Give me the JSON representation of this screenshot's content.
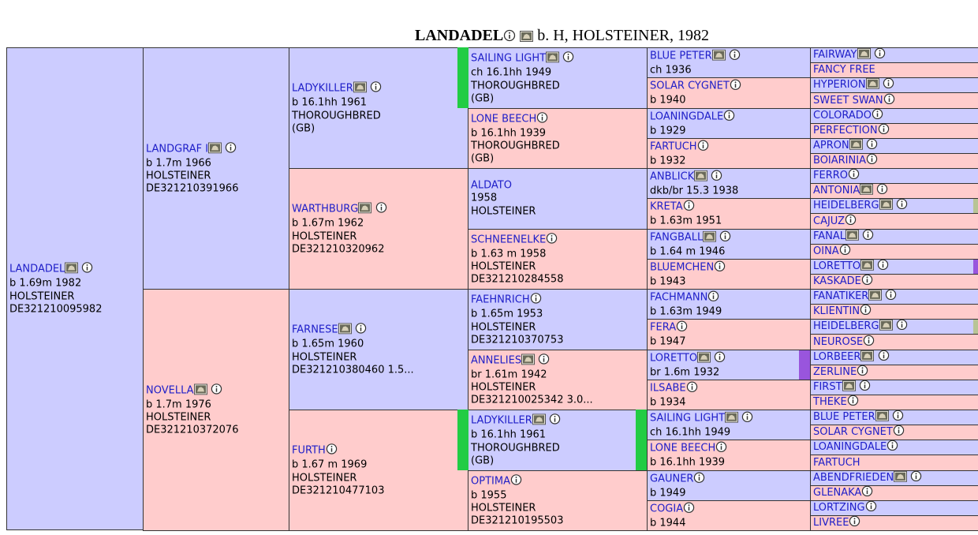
{
  "header": {
    "name": "LANDADEL",
    "details": "b. H, HOLSTEINER, 1982"
  },
  "colors": {
    "male": "#ccccff",
    "female": "#ffcccc",
    "link": "#1e1ec8",
    "green_marker": "#22cc44",
    "purple_marker": "#9955dd",
    "olive_marker": "#b8c496"
  },
  "icons": [
    "photo-icon",
    "info-icon"
  ],
  "subject": {
    "name": "LANDADEL",
    "lines": [
      "b 1.69m 1982",
      "HOLSTEINER",
      "DE321210095982"
    ],
    "photo": true
  },
  "gen1": [
    {
      "name": "LANDGRAF I",
      "lines": [
        "b 1.7m 1966",
        "HOLSTEINER",
        "DE321210391966"
      ],
      "photo": true,
      "sex": "m"
    },
    {
      "name": "NOVELLA",
      "lines": [
        "b 1.7m 1976",
        "HOLSTEINER",
        "DE321210372076"
      ],
      "photo": true,
      "sex": "f"
    }
  ],
  "gen2": [
    {
      "name": "LADYKILLER",
      "lines": [
        "b 16.1hh 1961",
        "THOROUGHBRED",
        "(GB)"
      ],
      "photo": true,
      "sex": "m"
    },
    {
      "name": "WARTHBURG",
      "lines": [
        "b 1.67m 1962",
        "HOLSTEINER",
        "DE321210320962"
      ],
      "photo": true,
      "sex": "f"
    },
    {
      "name": "FARNESE",
      "lines": [
        "b 1.65m 1960",
        "HOLSTEINER",
        "DE321210380460 1.5..."
      ],
      "photo": true,
      "sex": "m"
    },
    {
      "name": "FURTH",
      "lines": [
        "b 1.67 m 1969",
        "HOLSTEINER",
        "DE321210477103"
      ],
      "photo": false,
      "sex": "f"
    }
  ],
  "gen3": [
    {
      "name": "SAILING LIGHT",
      "lines": [
        "ch 16.1hh 1949",
        "THOROUGHBRED",
        "(GB)"
      ],
      "photo": true,
      "sex": "m"
    },
    {
      "name": "LONE BEECH",
      "lines": [
        "b 16.1hh 1939",
        "THOROUGHBRED",
        "(GB)"
      ],
      "photo": false,
      "sex": "f"
    },
    {
      "name": "ALDATO",
      "lines": [
        "1958",
        "HOLSTEINER"
      ],
      "photo": false,
      "info": false,
      "sex": "m"
    },
    {
      "name": "SCHNEENELKE",
      "lines": [
        "b 1.63 m 1958",
        "HOLSTEINER",
        "DE321210284558"
      ],
      "photo": false,
      "sex": "f"
    },
    {
      "name": "FAEHNRICH",
      "lines": [
        "b 1.65m 1953",
        "HOLSTEINER",
        "DE321210370753"
      ],
      "photo": false,
      "sex": "m"
    },
    {
      "name": "ANNELIES",
      "lines": [
        "br 1.61m 1942",
        "HOLSTEINER",
        "DE321210025342 3.0..."
      ],
      "photo": true,
      "sex": "f"
    },
    {
      "name": "LADYKILLER",
      "lines": [
        "b 16.1hh 1961",
        "THOROUGHBRED",
        "(GB)"
      ],
      "photo": true,
      "sex": "m"
    },
    {
      "name": "OPTIMA",
      "lines": [
        "b 1955",
        "HOLSTEINER",
        "DE321210195503"
      ],
      "photo": false,
      "sex": "f"
    }
  ],
  "gen4": [
    {
      "name": "BLUE PETER",
      "lines": [
        "ch 1936"
      ],
      "photo": true,
      "sex": "m"
    },
    {
      "name": "SOLAR CYGNET",
      "lines": [
        "b 1940"
      ],
      "photo": false,
      "sex": "f"
    },
    {
      "name": "LOANINGDALE",
      "lines": [
        "b 1929"
      ],
      "photo": false,
      "sex": "m"
    },
    {
      "name": "FARTUCH",
      "lines": [
        "b 1932"
      ],
      "photo": false,
      "sex": "f"
    },
    {
      "name": "ANBLICK",
      "lines": [
        "dkb/br 15.3 1938"
      ],
      "photo": true,
      "sex": "m"
    },
    {
      "name": "KRETA",
      "lines": [
        "b 1.63m 1951"
      ],
      "photo": false,
      "sex": "f"
    },
    {
      "name": "FANGBALL",
      "lines": [
        "b 1.64 m 1946"
      ],
      "photo": true,
      "sex": "m"
    },
    {
      "name": "BLUEMCHEN",
      "lines": [
        "b 1943"
      ],
      "photo": false,
      "sex": "f"
    },
    {
      "name": "FACHMANN",
      "lines": [
        "b 1.63m 1949"
      ],
      "photo": false,
      "sex": "m"
    },
    {
      "name": "FERA",
      "lines": [
        "b 1947"
      ],
      "photo": false,
      "sex": "f"
    },
    {
      "name": "LORETTO",
      "lines": [
        "br 1.6m 1932"
      ],
      "photo": true,
      "sex": "m"
    },
    {
      "name": "ILSABE",
      "lines": [
        "b 1934"
      ],
      "photo": false,
      "sex": "f"
    },
    {
      "name": "SAILING LIGHT",
      "lines": [
        "ch 16.1hh 1949"
      ],
      "photo": true,
      "sex": "m"
    },
    {
      "name": "LONE BEECH",
      "lines": [
        "b 16.1hh 1939"
      ],
      "photo": false,
      "sex": "f"
    },
    {
      "name": "GAUNER",
      "lines": [
        "b 1949"
      ],
      "photo": false,
      "sex": "m"
    },
    {
      "name": "COGIA",
      "lines": [
        "b 1944"
      ],
      "photo": false,
      "sex": "f"
    }
  ],
  "gen5": [
    {
      "name": "FAIRWAY",
      "photo": true,
      "sex": "m"
    },
    {
      "name": "FANCY FREE",
      "photo": false,
      "info": false,
      "sex": "f"
    },
    {
      "name": "HYPERION",
      "photo": true,
      "sex": "m"
    },
    {
      "name": "SWEET SWAN",
      "photo": false,
      "sex": "f"
    },
    {
      "name": "COLORADO",
      "photo": false,
      "sex": "m"
    },
    {
      "name": "PERFECTION",
      "photo": false,
      "sex": "f"
    },
    {
      "name": "APRON",
      "photo": true,
      "sex": "m"
    },
    {
      "name": "BOIARINIA",
      "photo": false,
      "sex": "f"
    },
    {
      "name": "FERRO",
      "photo": false,
      "sex": "m"
    },
    {
      "name": "ANTONIA",
      "photo": true,
      "sex": "f"
    },
    {
      "name": "HEIDELBERG",
      "photo": true,
      "sex": "m"
    },
    {
      "name": "CAJUZ",
      "photo": false,
      "sex": "f"
    },
    {
      "name": "FANAL",
      "photo": true,
      "sex": "m"
    },
    {
      "name": "OINA",
      "photo": false,
      "sex": "f"
    },
    {
      "name": "LORETTO",
      "photo": true,
      "sex": "m"
    },
    {
      "name": "KASKADE",
      "photo": false,
      "sex": "f"
    },
    {
      "name": "FANATIKER",
      "photo": true,
      "sex": "m"
    },
    {
      "name": "KLIENTIN",
      "photo": false,
      "sex": "f"
    },
    {
      "name": "HEIDELBERG",
      "photo": true,
      "sex": "m"
    },
    {
      "name": "NEUROSE",
      "photo": false,
      "sex": "f"
    },
    {
      "name": "LORBEER",
      "photo": true,
      "sex": "m"
    },
    {
      "name": "ZERLINE",
      "photo": false,
      "sex": "f"
    },
    {
      "name": "FIRST",
      "photo": true,
      "sex": "m"
    },
    {
      "name": "THEKE",
      "photo": false,
      "sex": "f"
    },
    {
      "name": "BLUE PETER",
      "photo": true,
      "sex": "m"
    },
    {
      "name": "SOLAR CYGNET",
      "photo": false,
      "sex": "f"
    },
    {
      "name": "LOANINGDALE",
      "photo": false,
      "sex": "m"
    },
    {
      "name": "FARTUCH",
      "photo": false,
      "info": false,
      "sex": "f"
    },
    {
      "name": "ABENDFRIEDEN",
      "photo": true,
      "sex": "m"
    },
    {
      "name": "GLENAKA",
      "photo": false,
      "sex": "f"
    },
    {
      "name": "LORTZING",
      "photo": false,
      "sex": "m"
    },
    {
      "name": "LIVREE",
      "photo": false,
      "sex": "f"
    }
  ],
  "markers": {
    "green_gen3": [
      0,
      6
    ],
    "purple_gen4": [
      10
    ],
    "green_gen5": [],
    "olive_gen5": [
      10,
      18
    ],
    "purple_gen5": [
      14
    ]
  }
}
